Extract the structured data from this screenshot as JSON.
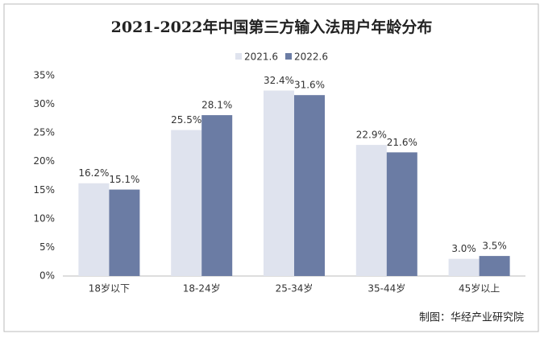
{
  "chart_data": {
    "type": "bar",
    "title": "2021-2022年中国第三方输入法用户年龄分布",
    "categories": [
      "18岁以下",
      "18-24岁",
      "25-34岁",
      "35-44岁",
      "45岁以上"
    ],
    "series": [
      {
        "name": "2021.6",
        "color": "#dfe3ee",
        "values": [
          16.2,
          25.5,
          32.4,
          22.9,
          3.0
        ],
        "value_labels": [
          "16.2%",
          "25.5%",
          "32.4%",
          "22.9%",
          "3.0%"
        ]
      },
      {
        "name": "2022.6",
        "color": "#6b7ca4",
        "values": [
          15.1,
          28.1,
          31.6,
          21.6,
          3.5
        ],
        "value_labels": [
          "15.1%",
          "28.1%",
          "31.6%",
          "21.6%",
          "3.5%"
        ]
      }
    ],
    "ylim": [
      0,
      35
    ],
    "yticks": [
      {
        "value": 0,
        "label": "0%"
      },
      {
        "value": 5,
        "label": "5%"
      },
      {
        "value": 10,
        "label": "10%"
      },
      {
        "value": 15,
        "label": "15%"
      },
      {
        "value": 20,
        "label": "20%"
      },
      {
        "value": 25,
        "label": "25%"
      },
      {
        "value": 30,
        "label": "30%"
      },
      {
        "value": 35,
        "label": "35%"
      }
    ],
    "grid": false,
    "legend": "top",
    "source": "制图：华经产业研究院"
  }
}
